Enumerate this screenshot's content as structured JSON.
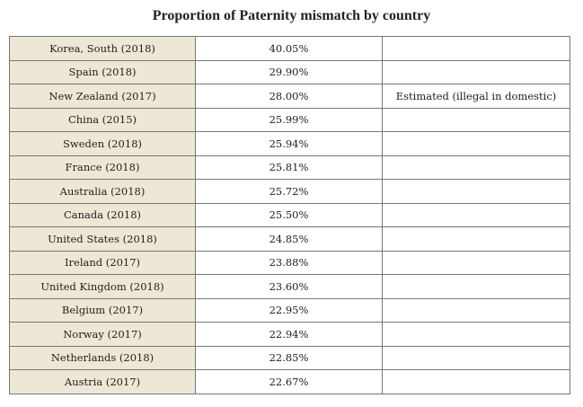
{
  "title": "Proportion of Paternity mismatch by country",
  "table": {
    "rows": [
      {
        "country": "Korea, South (2018)",
        "value": "40.05%"
      },
      {
        "country": "Spain (2018)",
        "value": "29.90%"
      },
      {
        "country": "New Zealand (2017)",
        "value": "28.00%",
        "note": "Estimated (illegal in domestic)"
      },
      {
        "country": "China (2015)",
        "value": "25.99%"
      },
      {
        "country": "Sweden (2018)",
        "value": "25.94%"
      },
      {
        "country": "France (2018)",
        "value": "25.81%"
      },
      {
        "country": "Australia (2018)",
        "value": "25.72%"
      },
      {
        "country": "Canada (2018)",
        "value": "25.50%"
      },
      {
        "country": "United States (2018)",
        "value": "24.85%"
      },
      {
        "country": "Ireland (2017)",
        "value": "23.88%"
      },
      {
        "country": "United Kingdom (2018)",
        "value": "23.60%"
      },
      {
        "country": "Belgium (2017)",
        "value": "22.95%"
      },
      {
        "country": "Norway (2017)",
        "value": "22.94%"
      },
      {
        "country": "Netherlands (2018)",
        "value": "22.85%"
      },
      {
        "country": "Austria (2017)",
        "value": "22.67%"
      }
    ]
  }
}
